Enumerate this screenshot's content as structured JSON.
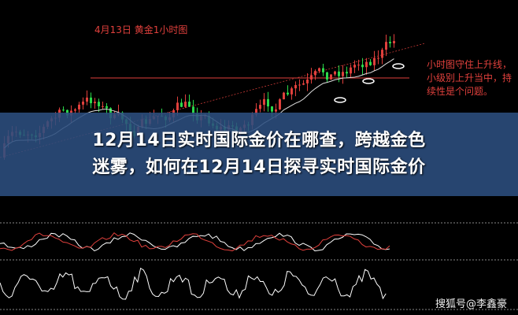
{
  "chart_label": "4月13日 黄金1小时图",
  "annotation": "小时图守住上升线，小级别上升当中，持续性是个问题。",
  "headline": {
    "line1": "12月14日实时国际金价在哪查，跨越金色",
    "line2": "迷雾，如何在12月14日探寻实时国际金价"
  },
  "watermark": "搜狐号@李鑫豪",
  "colors": {
    "up": "#e0403c",
    "down": "#2bd94a",
    "banner": "#2c4e80",
    "annotation": "#e0403c"
  }
}
